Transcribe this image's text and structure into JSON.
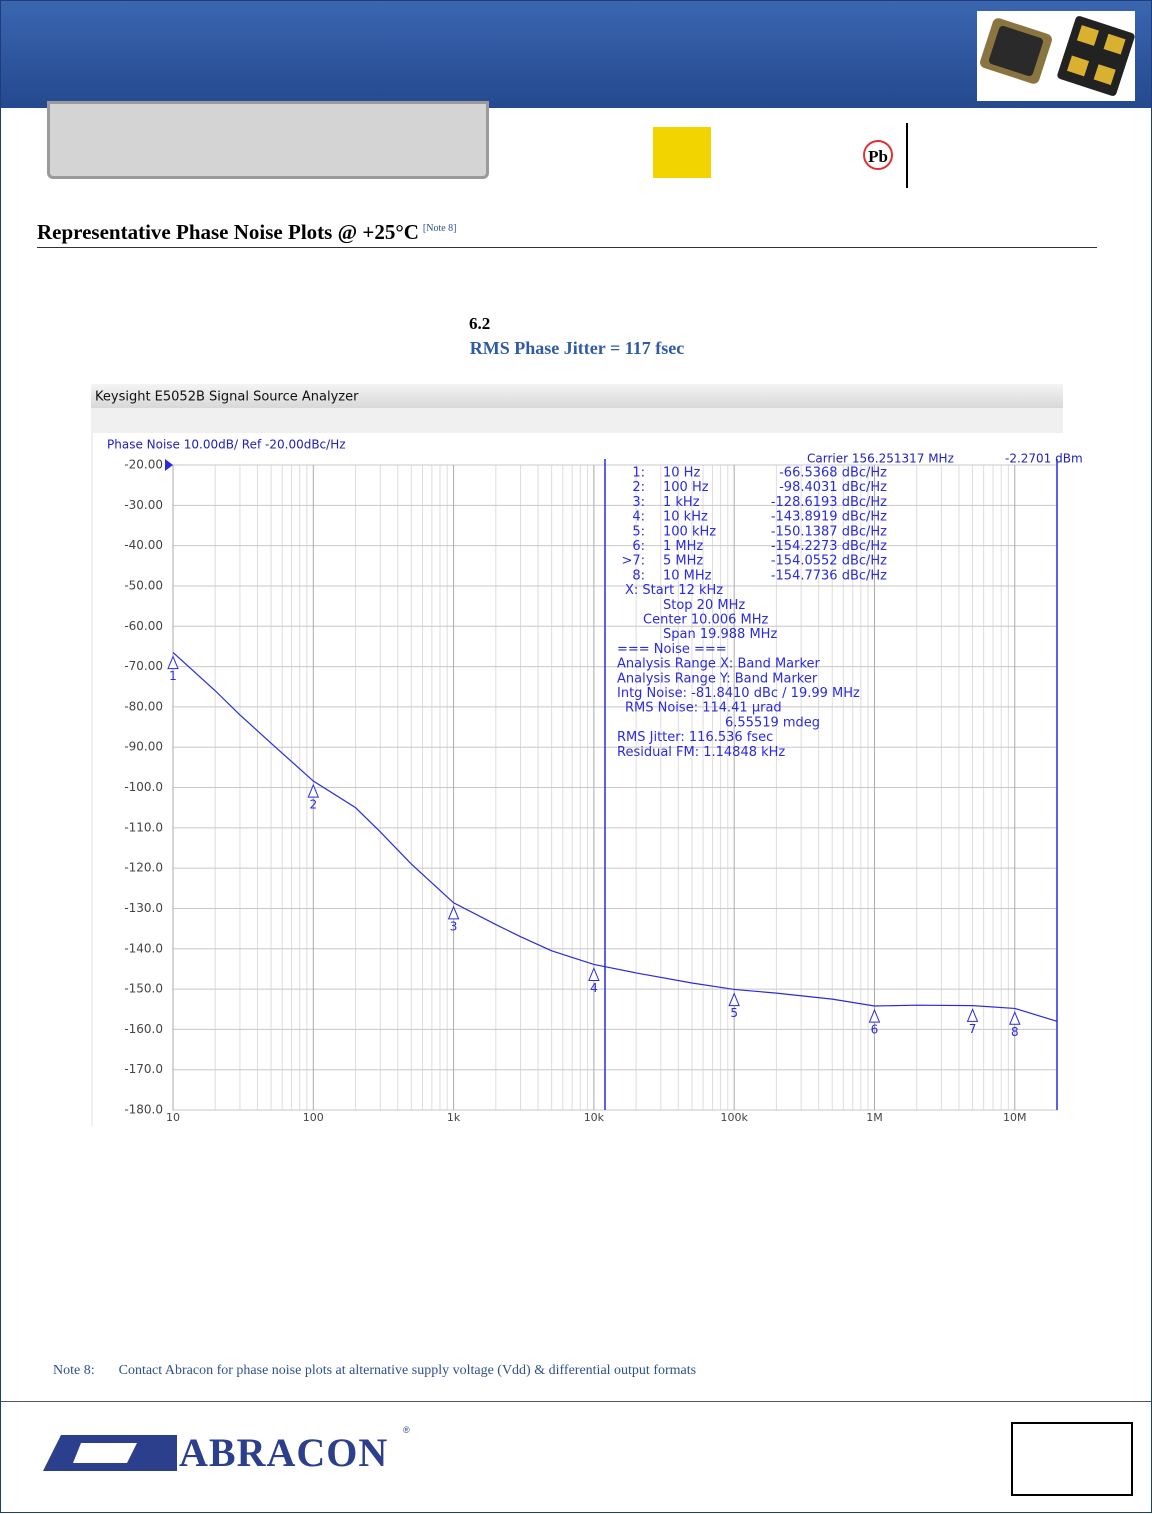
{
  "header": {
    "pb_icon": "Pb"
  },
  "section": {
    "title": "Representative Phase Noise Plots @ +25°C",
    "note_ref": "[Note 8]"
  },
  "subsection": {
    "number": "6.2",
    "caption": "RMS Phase Jitter = 117 fsec"
  },
  "chart_data": {
    "type": "line",
    "window_title": "Keysight E5052B Signal Source Analyzer",
    "trace_title": "Phase Noise 10.00dB/ Ref -20.00dBc/Hz",
    "carrier": "Carrier 156.251317 MHz",
    "carrier_power": "-2.2701 dBm",
    "log_x": true,
    "grid": true,
    "xlim": [
      10,
      20000000
    ],
    "ylim": [
      -180,
      -20
    ],
    "xticks": [
      10,
      100,
      {
        "value": 1000,
        "label": "1k"
      },
      {
        "value": 10000,
        "label": "10k"
      },
      {
        "value": 100000,
        "label": "100k"
      },
      {
        "value": 1000000,
        "label": "1M"
      },
      {
        "value": 10000000,
        "label": "10M"
      }
    ],
    "yticks": [
      {
        "value": -20,
        "label": "-20.00"
      },
      {
        "value": -30,
        "label": "-30.00"
      },
      {
        "value": -40,
        "label": "-40.00"
      },
      {
        "value": -50,
        "label": "-50.00"
      },
      {
        "value": -60,
        "label": "-60.00"
      },
      {
        "value": -70,
        "label": "-70.00"
      },
      {
        "value": -80,
        "label": "-80.00"
      },
      {
        "value": -90,
        "label": "-90.00"
      },
      {
        "value": -100,
        "label": "-100.0"
      },
      {
        "value": -110,
        "label": "-110.0"
      },
      {
        "value": -120,
        "label": "-120.0"
      },
      {
        "value": -130,
        "label": "-130.0"
      },
      {
        "value": -140,
        "label": "-140.0"
      },
      {
        "value": -150,
        "label": "-150.0"
      },
      {
        "value": -160,
        "label": "-160.0"
      },
      {
        "value": -170,
        "label": "-170.0"
      },
      {
        "value": -180,
        "label": "-180.0"
      }
    ],
    "series": [
      {
        "color": "#2a2ae0",
        "x": [
          10,
          20,
          30,
          50,
          100,
          200,
          300,
          500,
          1000,
          2000,
          3000,
          5000,
          10000,
          20000,
          50000,
          100000,
          200000,
          500000,
          1000000,
          2000000,
          5000000,
          10000000,
          20000000
        ],
        "values": [
          -66.5,
          -76,
          -82,
          -89,
          -98.4,
          -105,
          -111,
          -119,
          -128.6,
          -134,
          -137,
          -140.5,
          -143.9,
          -146,
          -148.5,
          -150.1,
          -151,
          -152.5,
          -154.2,
          -154,
          -154.1,
          -154.8,
          -158
        ]
      }
    ],
    "band_x": [
      12000,
      20000000
    ],
    "markers": {
      "labels": [
        "1",
        "2",
        "3",
        "4",
        "5",
        "6",
        "7",
        "8"
      ],
      "x": [
        10,
        100,
        1000,
        10000,
        100000,
        1000000,
        5000000,
        10000000
      ],
      "values": [
        -66.5368,
        -98.4031,
        -128.6193,
        -143.8919,
        -150.1387,
        -154.2273,
        -154.0552,
        -154.7736
      ]
    },
    "marker_table": [
      [
        "1:",
        "10 Hz",
        "-66.5368 dBc/Hz"
      ],
      [
        "2:",
        "100 Hz",
        "-98.4031 dBc/Hz"
      ],
      [
        "3:",
        "1 kHz",
        "-128.6193 dBc/Hz"
      ],
      [
        "4:",
        "10 kHz",
        "-143.8919 dBc/Hz"
      ],
      [
        "5:",
        "100 kHz",
        "-150.1387 dBc/Hz"
      ],
      [
        "6:",
        "1 MHz",
        "-154.2273 dBc/Hz"
      ],
      [
        ">7:",
        "5 MHz",
        "-154.0552 dBc/Hz"
      ],
      [
        "8:",
        "10 MHz",
        "-154.7736 dBc/Hz"
      ]
    ],
    "analysis_lines": [
      "X: Start 12 kHz",
      "Stop 20 MHz",
      "Center 10.006 MHz",
      "Span 19.988 MHz",
      "=== Noise ===",
      "Analysis Range X: Band Marker",
      "Analysis Range Y: Band Marker",
      "Intg Noise: -81.8410 dBc / 19.99 MHz",
      "RMS Noise: 114.41 µrad",
      "6.55519 mdeg",
      "RMS Jitter: 116.536 fsec",
      "Residual FM: 1.14848 kHz"
    ]
  },
  "note": {
    "label": "Note 8:",
    "text": "Contact Abracon for phase noise plots at alternative supply voltage (Vdd) & differential output formats"
  },
  "footer": {
    "logo": "ABRACON",
    "registered": "®"
  }
}
